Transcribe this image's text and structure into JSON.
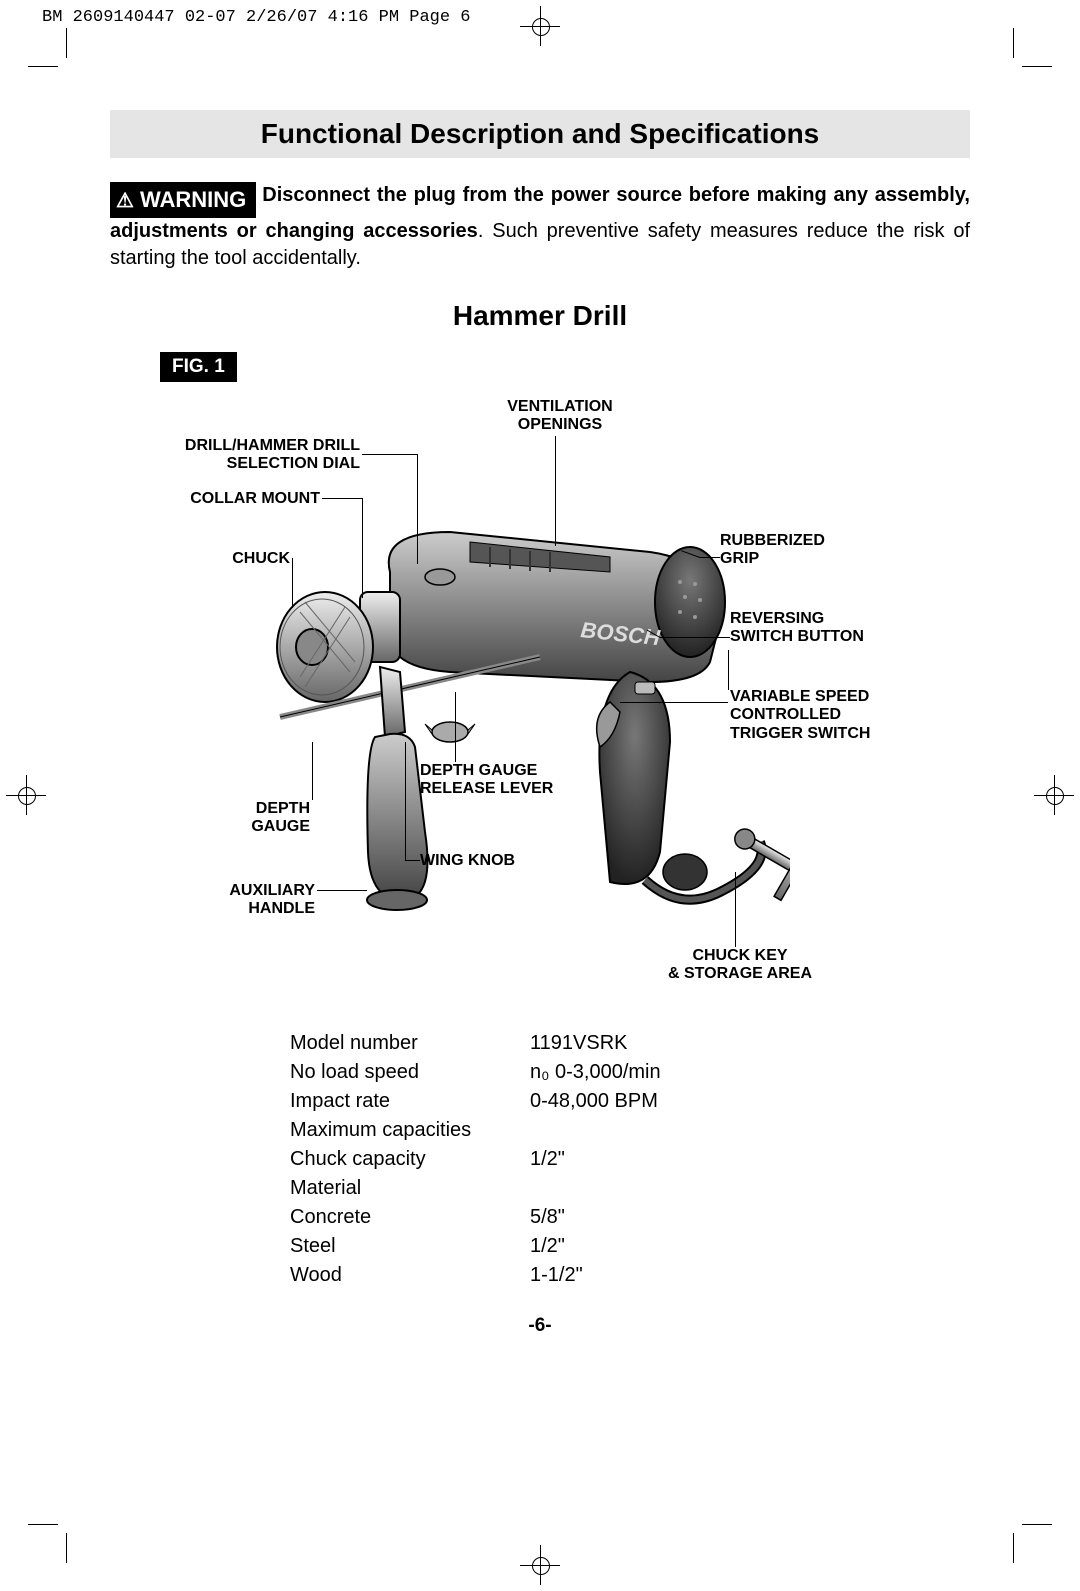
{
  "header": "BM 2609140447 02-07  2/26/07  4:16 PM  Page 6",
  "section_title": "Functional Description and Specifications",
  "warning": {
    "badge": "WARNING",
    "bold": "Disconnect the plug from the power source before making any assembly, adjustments or changing accessories",
    "rest": ". Such preventive safety measures reduce the risk of starting the tool accidentally."
  },
  "subtitle": "Hammer Drill",
  "fig": "FIG. 1",
  "labels": {
    "ventilation": "VENTILATION\nOPENINGS",
    "drill_hammer": "DRILL/HAMMER DRILL\nSELECTION DIAL",
    "collar_mount": "COLLAR MOUNT",
    "chuck": "CHUCK",
    "rubberized": "RUBBERIZED\nGRIP",
    "reversing": "REVERSING\nSWITCH BUTTON",
    "variable": "VARIABLE SPEED\nCONTROLLED\nTRIGGER SWITCH",
    "depth_release": "DEPTH GAUGE\nRELEASE LEVER",
    "depth_gauge": "DEPTH\nGAUGE",
    "wing_knob": "WING KNOB",
    "aux_handle": "AUXILIARY\nHANDLE",
    "chuck_key": "CHUCK KEY\n& STORAGE AREA"
  },
  "specs": {
    "rows": [
      {
        "label": "Model number",
        "value": "1191VSRK"
      },
      {
        "label": "No load speed",
        "value": "n₀ 0-3,000/min"
      },
      {
        "label": "Impact rate",
        "value": "0-48,000 BPM"
      },
      {
        "label": "Maximum capacities",
        "value": ""
      },
      {
        "label": "Chuck capacity",
        "value": "1/2\""
      },
      {
        "label": "Material",
        "value": ""
      },
      {
        "label": "Concrete",
        "value": "5/8\""
      },
      {
        "label": "Steel",
        "value": "1/2\""
      },
      {
        "label": "Wood",
        "value": "1-1/2\""
      }
    ]
  },
  "page_num": "-6-"
}
